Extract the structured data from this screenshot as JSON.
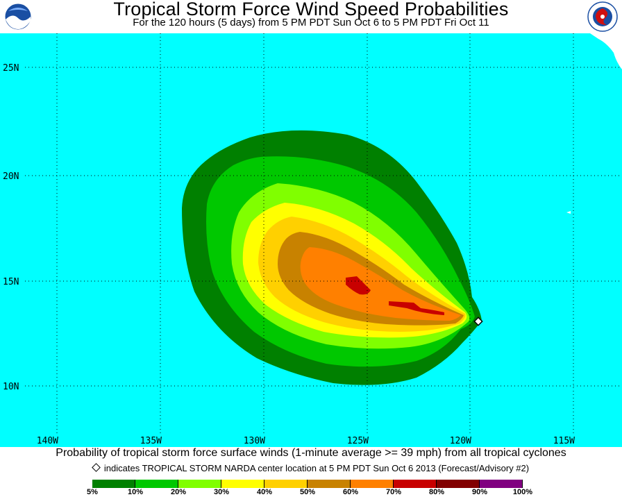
{
  "header": {
    "title": "Tropical Storm Force Wind Speed Probabilities",
    "subtitle": "For the 120 hours (5 days) from 5 PM PDT Sun Oct 6 to 5 PM PDT Fri Oct 11",
    "left_logo_text": "NOAA",
    "right_logo_text": "NATIONAL WEATHER SERVICE"
  },
  "map": {
    "ocean_color": "#00ffff",
    "land_color": "#ffffff",
    "lon_labels": [
      "140W",
      "135W",
      "130W",
      "125W",
      "120W",
      "115W"
    ],
    "lat_labels": [
      "25N",
      "20N",
      "15N",
      "10N"
    ],
    "storm_marker": {
      "lon": "118.8W",
      "lat": "13.2N",
      "icon": "diamond-icon"
    }
  },
  "footer": {
    "description": "Probability of tropical storm force surface winds (1-minute average >= 39 mph) from all tropical cyclones",
    "marker_note": "indicates TROPICAL STORM NARDA center location at 5 PM PDT Sun Oct 6 2013 (Forecast/Advisory #2)"
  },
  "legend": {
    "colors": [
      "#008000",
      "#00c800",
      "#80ff00",
      "#ffff00",
      "#ffd000",
      "#c88200",
      "#ff8000",
      "#c80000",
      "#820000",
      "#800080"
    ],
    "labels": [
      "5%",
      "10%",
      "20%",
      "30%",
      "40%",
      "50%",
      "60%",
      "70%",
      "80%",
      "90%",
      "100%"
    ]
  }
}
